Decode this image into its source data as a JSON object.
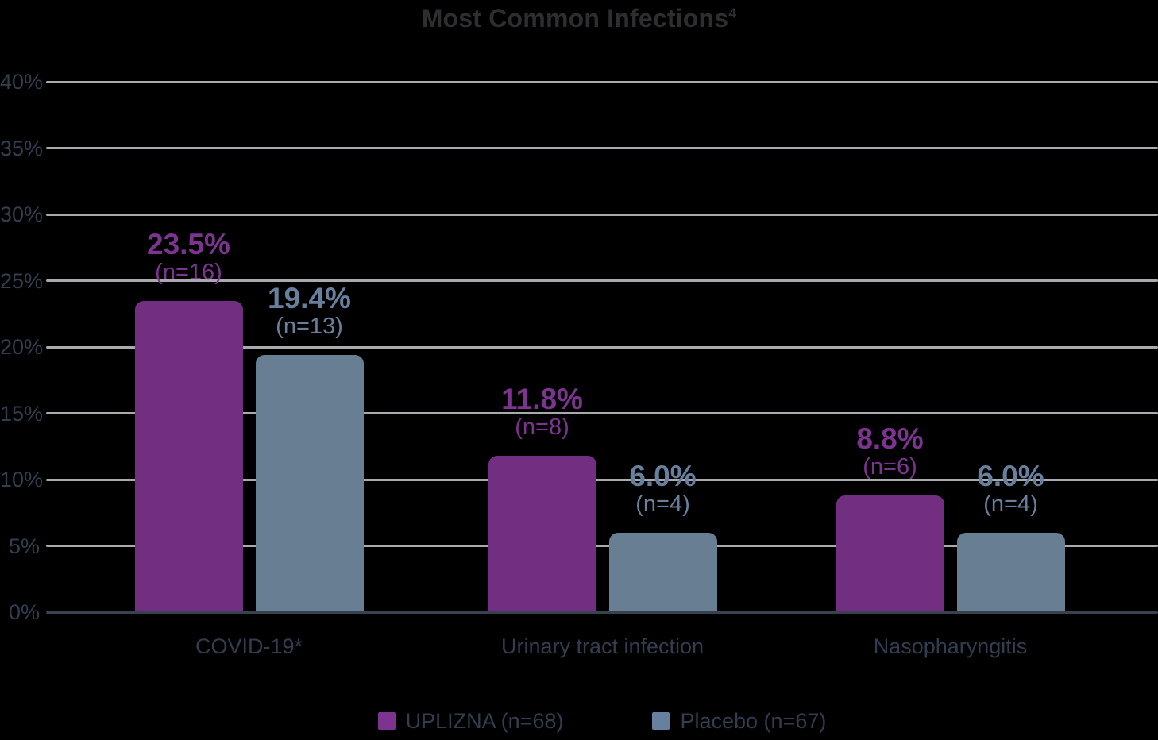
{
  "title": {
    "text": "Most Common Infections",
    "superscript": "4"
  },
  "colors": {
    "background": "#000000",
    "title_text": "#2d2e30",
    "axis_text": "#323d4f",
    "gridline": "#a9aaad",
    "baseline": "#39404f",
    "uplizna_bar": "#722f81",
    "uplizna_label": "#7d3390",
    "placebo_bar": "#677e93",
    "placebo_label": "#67809d"
  },
  "chart_data": {
    "type": "bar",
    "title": "Most Common Infections4",
    "categories": [
      "COVID-19*",
      "Urinary tract infection",
      "Nasopharyngitis"
    ],
    "series": [
      {
        "key": "uplizna",
        "name": "UPLIZNA (n=68)",
        "values": [
          23.5,
          11.8,
          8.8
        ],
        "value_labels": [
          "23.5%",
          "11.8%",
          "8.8%"
        ],
        "n_labels": [
          "(n=16)",
          "(n=8)",
          "(n=6)"
        ],
        "color": "#722f81",
        "label_color": "#7d3390"
      },
      {
        "key": "placebo",
        "name": "Placebo (n=67)",
        "values": [
          19.4,
          6.0,
          6.0
        ],
        "value_labels": [
          "19.4%",
          "6.0%",
          "6.0%"
        ],
        "n_labels": [
          "(n=13)",
          "(n=4)",
          "(n=4)"
        ],
        "color": "#677e93",
        "label_color": "#67809d"
      }
    ],
    "xlabel": "",
    "ylabel": "",
    "ylim": [
      0,
      40
    ],
    "ytick_step": 5,
    "ytick_labels": [
      "0%",
      "5%",
      "10%",
      "15%",
      "20%",
      "25%",
      "30%",
      "35%",
      "40%"
    ],
    "grid": true,
    "legend_position": "bottom"
  }
}
